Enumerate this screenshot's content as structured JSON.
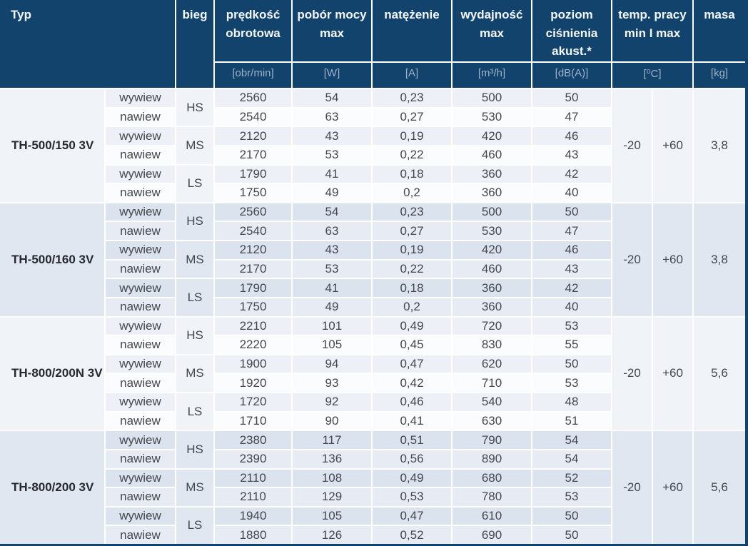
{
  "colors": {
    "header_bg": "#11436d",
    "header_text": "#f4f7fb",
    "unit_text": "#9db3cc",
    "body_text": "#43484e",
    "stripe_light_odd": "#edf1f7",
    "stripe_light_even": "#fafcfe",
    "stripe_blue_odd": "#dbe3ee",
    "stripe_blue_even": "#e7ecf4"
  },
  "table": {
    "header": {
      "typ": "Typ",
      "bieg": "bieg",
      "columns": [
        {
          "label": "prędkość obrotowa",
          "unit": "[obr/min]"
        },
        {
          "label": "pobór mocy max",
          "unit": "[W]"
        },
        {
          "label": "natężenie",
          "unit": "[A]"
        },
        {
          "label": "wydajność max",
          "unit": "[m³/h]"
        },
        {
          "label": "poziom ciśnienia akust.*",
          "unit": "[dB(A)]"
        }
      ],
      "temp": {
        "label": "temp. pracy min I max",
        "unit": "[⁰C]"
      },
      "masa": {
        "label": "masa",
        "unit": "[kg]"
      }
    },
    "blocks": [
      {
        "typ": "TH-500/150 3V",
        "temp_min": "-20",
        "temp_max": "+60",
        "masa": "3,8",
        "rows": [
          {
            "kierunek": "wywiew",
            "bieg": "HS",
            "obroty": "2560",
            "moc": "54",
            "natezenie": "0,23",
            "wydajnosc": "500",
            "poziom": "50"
          },
          {
            "kierunek": "nawiew",
            "obroty": "2540",
            "moc": "63",
            "natezenie": "0,27",
            "wydajnosc": "530",
            "poziom": "47"
          },
          {
            "kierunek": "wywiew",
            "bieg": "MS",
            "obroty": "2120",
            "moc": "43",
            "natezenie": "0,19",
            "wydajnosc": "420",
            "poziom": "46"
          },
          {
            "kierunek": "nawiew",
            "obroty": "2170",
            "moc": "53",
            "natezenie": "0,22",
            "wydajnosc": "460",
            "poziom": "43"
          },
          {
            "kierunek": "wywiew",
            "bieg": "LS",
            "obroty": "1790",
            "moc": "41",
            "natezenie": "0,18",
            "wydajnosc": "360",
            "poziom": "42"
          },
          {
            "kierunek": "nawiew",
            "obroty": "1750",
            "moc": "49",
            "natezenie": "0,2",
            "wydajnosc": "360",
            "poziom": "40"
          }
        ]
      },
      {
        "typ": "TH-500/160 3V",
        "temp_min": "-20",
        "temp_max": "+60",
        "masa": "3,8",
        "rows": [
          {
            "kierunek": "wywiew",
            "bieg": "HS",
            "obroty": "2560",
            "moc": "54",
            "natezenie": "0,23",
            "wydajnosc": "500",
            "poziom": "50"
          },
          {
            "kierunek": "nawiew",
            "obroty": "2540",
            "moc": "63",
            "natezenie": "0,27",
            "wydajnosc": "530",
            "poziom": "47"
          },
          {
            "kierunek": "wywiew",
            "bieg": "MS",
            "obroty": "2120",
            "moc": "43",
            "natezenie": "0,19",
            "wydajnosc": "420",
            "poziom": "46"
          },
          {
            "kierunek": "nawiew",
            "obroty": "2170",
            "moc": "53",
            "natezenie": "0,22",
            "wydajnosc": "460",
            "poziom": "43"
          },
          {
            "kierunek": "wywiew",
            "bieg": "LS",
            "obroty": "1790",
            "moc": "41",
            "natezenie": "0,18",
            "wydajnosc": "360",
            "poziom": "42"
          },
          {
            "kierunek": "nawiew",
            "obroty": "1750",
            "moc": "49",
            "natezenie": "0,2",
            "wydajnosc": "360",
            "poziom": "40"
          }
        ]
      },
      {
        "typ": "TH-800/200N 3V",
        "temp_min": "-20",
        "temp_max": "+60",
        "masa": "5,6",
        "rows": [
          {
            "kierunek": "wywiew",
            "bieg": "HS",
            "obroty": "2210",
            "moc": "101",
            "natezenie": "0,49",
            "wydajnosc": "720",
            "poziom": "53"
          },
          {
            "kierunek": "nawiew",
            "obroty": "2220",
            "moc": "105",
            "natezenie": "0,45",
            "wydajnosc": "830",
            "poziom": "55"
          },
          {
            "kierunek": "wywiew",
            "bieg": "MS",
            "obroty": "1900",
            "moc": "94",
            "natezenie": "0,47",
            "wydajnosc": "620",
            "poziom": "50"
          },
          {
            "kierunek": "nawiew",
            "obroty": "1920",
            "moc": "93",
            "natezenie": "0,42",
            "wydajnosc": "710",
            "poziom": "53"
          },
          {
            "kierunek": "wywiew",
            "bieg": "LS",
            "obroty": "1720",
            "moc": "92",
            "natezenie": "0,46",
            "wydajnosc": "540",
            "poziom": "48"
          },
          {
            "kierunek": "nawiew",
            "obroty": "1710",
            "moc": "90",
            "natezenie": "0,41",
            "wydajnosc": "630",
            "poziom": "51"
          }
        ]
      },
      {
        "typ": "TH-800/200 3V",
        "temp_min": "-20",
        "temp_max": "+60",
        "masa": "5,6",
        "rows": [
          {
            "kierunek": "wywiew",
            "bieg": "HS",
            "obroty": "2380",
            "moc": "117",
            "natezenie": "0,51",
            "wydajnosc": "790",
            "poziom": "54"
          },
          {
            "kierunek": "nawiew",
            "obroty": "2390",
            "moc": "136",
            "natezenie": "0,56",
            "wydajnosc": "890",
            "poziom": "54"
          },
          {
            "kierunek": "wywiew",
            "bieg": "MS",
            "obroty": "2110",
            "moc": "108",
            "natezenie": "0,49",
            "wydajnosc": "680",
            "poziom": "52"
          },
          {
            "kierunek": "nawiew",
            "obroty": "2110",
            "moc": "129",
            "natezenie": "0,53",
            "wydajnosc": "780",
            "poziom": "53"
          },
          {
            "kierunek": "wywiew",
            "bieg": "LS",
            "obroty": "1940",
            "moc": "105",
            "natezenie": "0,47",
            "wydajnosc": "610",
            "poziom": "50"
          },
          {
            "kierunek": "nawiew",
            "obroty": "1880",
            "moc": "126",
            "natezenie": "0,52",
            "wydajnosc": "690",
            "poziom": "50"
          }
        ]
      }
    ]
  }
}
